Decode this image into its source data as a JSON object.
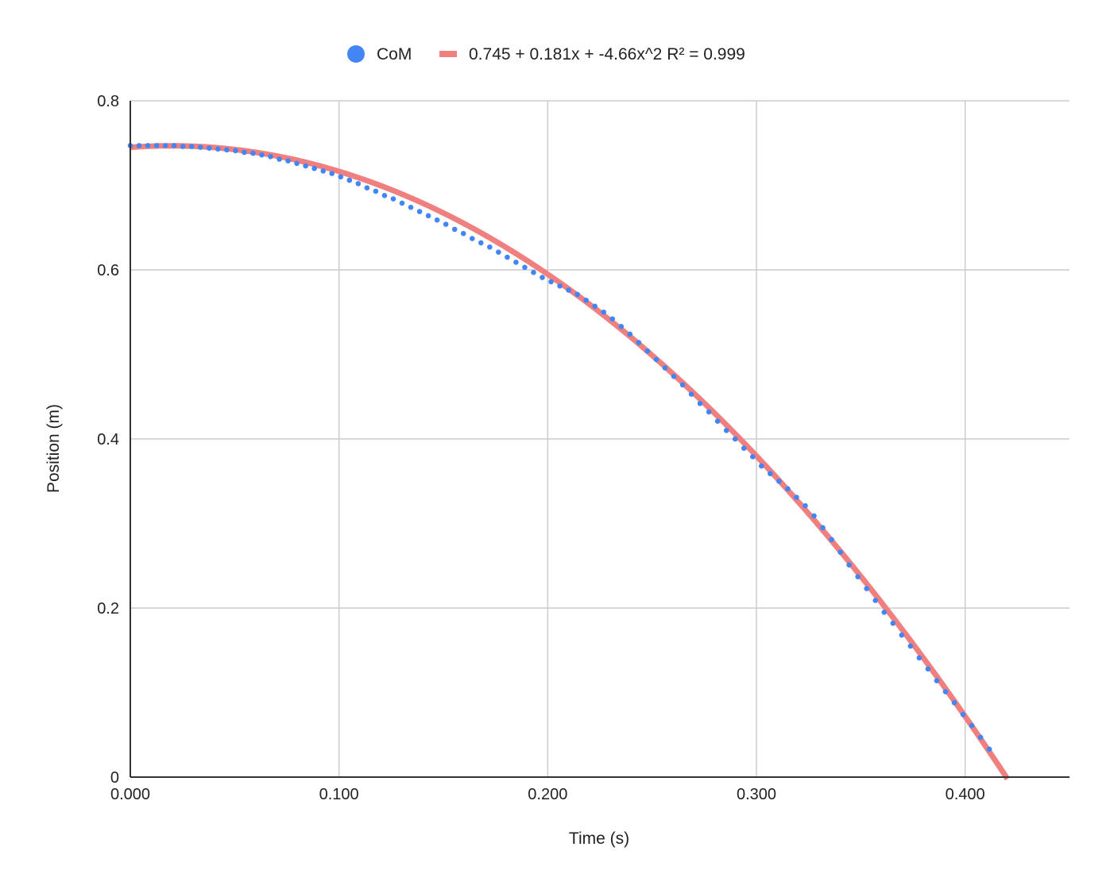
{
  "chart_data": {
    "type": "scatter",
    "title": "",
    "xlabel": "Time (s)",
    "ylabel": "Position (m)",
    "xlim": [
      0,
      0.45
    ],
    "ylim": [
      0,
      0.8
    ],
    "x_ticks": [
      0,
      0.1,
      0.2,
      0.3,
      0.4
    ],
    "x_tick_labels": [
      "0.000",
      "0.100",
      "0.200",
      "0.300",
      "0.400"
    ],
    "y_ticks": [
      0,
      0.2,
      0.4,
      0.6,
      0.8
    ],
    "y_tick_labels": [
      "0",
      "0.2",
      "0.4",
      "0.6",
      "0.8"
    ],
    "grid": true,
    "legend_position": "top",
    "series": [
      {
        "name": "CoM",
        "kind": "scatter",
        "color": "#4285f4",
        "x": [
          0,
          0.0042,
          0.0084,
          0.0126,
          0.0168,
          0.021,
          0.0252,
          0.0294,
          0.0336,
          0.0378,
          0.042,
          0.0462,
          0.0504,
          0.0546,
          0.0588,
          0.063,
          0.0672,
          0.0714,
          0.0756,
          0.0798,
          0.084,
          0.0882,
          0.0924,
          0.0966,
          0.1008,
          0.105,
          0.1092,
          0.1134,
          0.1176,
          0.1218,
          0.126,
          0.1302,
          0.1344,
          0.1386,
          0.1428,
          0.147,
          0.1512,
          0.1554,
          0.1596,
          0.1638,
          0.168,
          0.1722,
          0.1764,
          0.1806,
          0.1848,
          0.189,
          0.1932,
          0.1974,
          0.2016,
          0.2058,
          0.21,
          0.2142,
          0.2184,
          0.2226,
          0.2268,
          0.231,
          0.2352,
          0.2394,
          0.2436,
          0.2478,
          0.252,
          0.2562,
          0.2604,
          0.2646,
          0.2688,
          0.273,
          0.2772,
          0.2814,
          0.2856,
          0.2898,
          0.294,
          0.2982,
          0.3024,
          0.3066,
          0.3108,
          0.315,
          0.3192,
          0.3234,
          0.3276,
          0.3318,
          0.336,
          0.3402,
          0.3444,
          0.3486,
          0.3528,
          0.357,
          0.3612,
          0.3654,
          0.3696,
          0.3738,
          0.378,
          0.3822,
          0.3864,
          0.3906,
          0.3948,
          0.399,
          0.4032,
          0.4074,
          0.4116
        ],
        "y": [
          0.747,
          0.747,
          0.747,
          0.747,
          0.747,
          0.747,
          0.746,
          0.746,
          0.745,
          0.744,
          0.743,
          0.742,
          0.741,
          0.739,
          0.738,
          0.736,
          0.734,
          0.731,
          0.729,
          0.726,
          0.723,
          0.72,
          0.717,
          0.714,
          0.71,
          0.706,
          0.702,
          0.697,
          0.693,
          0.688,
          0.684,
          0.679,
          0.674,
          0.669,
          0.664,
          0.659,
          0.654,
          0.648,
          0.643,
          0.637,
          0.632,
          0.627,
          0.621,
          0.615,
          0.609,
          0.603,
          0.597,
          0.591,
          0.586,
          0.581,
          0.576,
          0.571,
          0.564,
          0.557,
          0.55,
          0.542,
          0.533,
          0.524,
          0.514,
          0.504,
          0.494,
          0.484,
          0.474,
          0.464,
          0.453,
          0.442,
          0.432,
          0.421,
          0.41,
          0.4,
          0.389,
          0.379,
          0.368,
          0.359,
          0.35,
          0.341,
          0.331,
          0.321,
          0.309,
          0.295,
          0.281,
          0.266,
          0.251,
          0.237,
          0.223,
          0.209,
          0.195,
          0.182,
          0.168,
          0.155,
          0.141,
          0.128,
          0.114,
          0.101,
          0.088,
          0.074,
          0.061,
          0.047,
          0.033
        ]
      },
      {
        "name": "0.745 + 0.181x + -4.66x^2 R² = 0.999",
        "kind": "trendline",
        "color": "#f08080",
        "coefficients": [
          0.745,
          0.181,
          -4.66
        ],
        "x_range": [
          0,
          0.4203
        ]
      }
    ]
  }
}
